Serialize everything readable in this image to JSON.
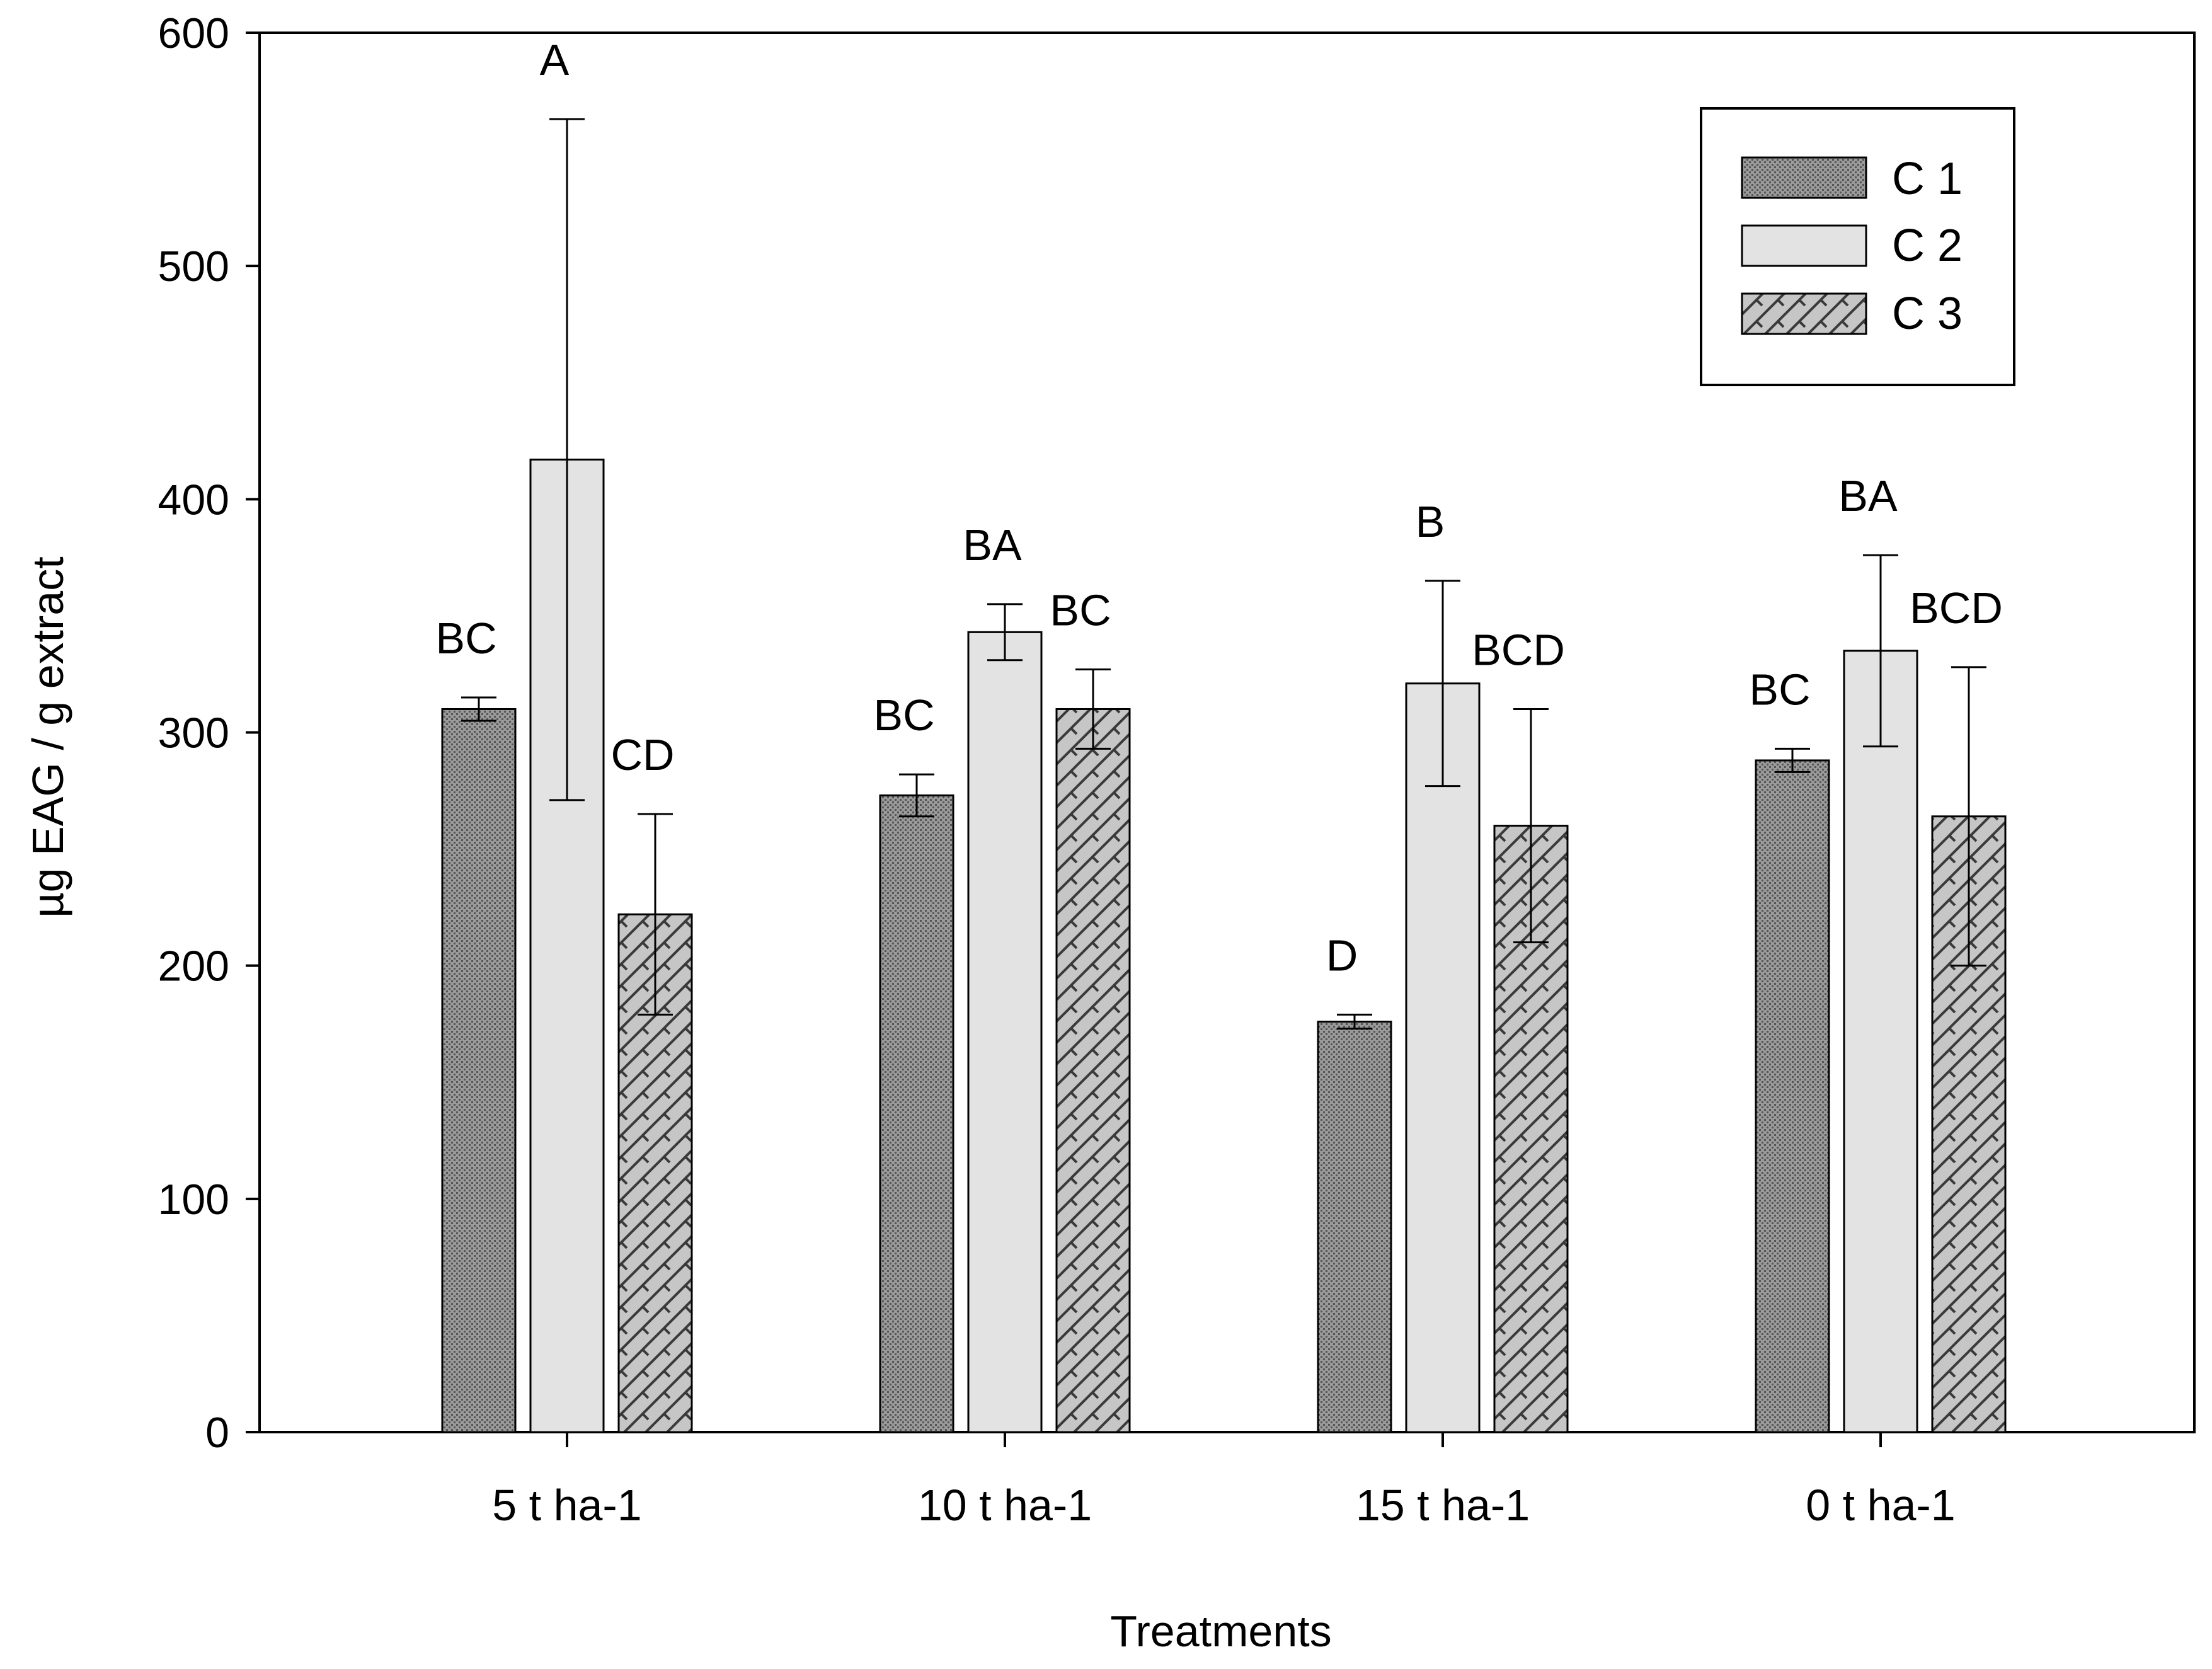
{
  "chart_data": {
    "type": "bar",
    "title": "",
    "xlabel": "Treatments",
    "ylabel": "µg EAG / g extract",
    "ylim": [
      0,
      600
    ],
    "yticks": [
      0,
      100,
      200,
      300,
      400,
      500,
      600
    ],
    "grid": false,
    "legend_position": "top-right",
    "categories": [
      "5 t ha-1",
      "10 t ha-1",
      "15 t ha-1",
      "0 t ha-1"
    ],
    "series": [
      {
        "name": "C 1",
        "pattern": "dots",
        "color": "#8c8c8c",
        "values": [
          310,
          273,
          176,
          288
        ],
        "errors": [
          5,
          9,
          3,
          5
        ],
        "significance": [
          "BC",
          "BC",
          "D",
          "BC"
        ]
      },
      {
        "name": "C 2",
        "pattern": "plain",
        "color": "#e3e3e3",
        "values": [
          417,
          343,
          321,
          335
        ],
        "errors": [
          146,
          12,
          44,
          41
        ],
        "significance": [
          "A",
          "BA",
          "B",
          "BA"
        ]
      },
      {
        "name": "C 3",
        "pattern": "hatch",
        "color": "#b8b8b8",
        "values": [
          222,
          310,
          260,
          264
        ],
        "errors": [
          43,
          17,
          50,
          64
        ],
        "significance": [
          "CD",
          "BC",
          "BCD",
          "BCD"
        ]
      }
    ]
  }
}
